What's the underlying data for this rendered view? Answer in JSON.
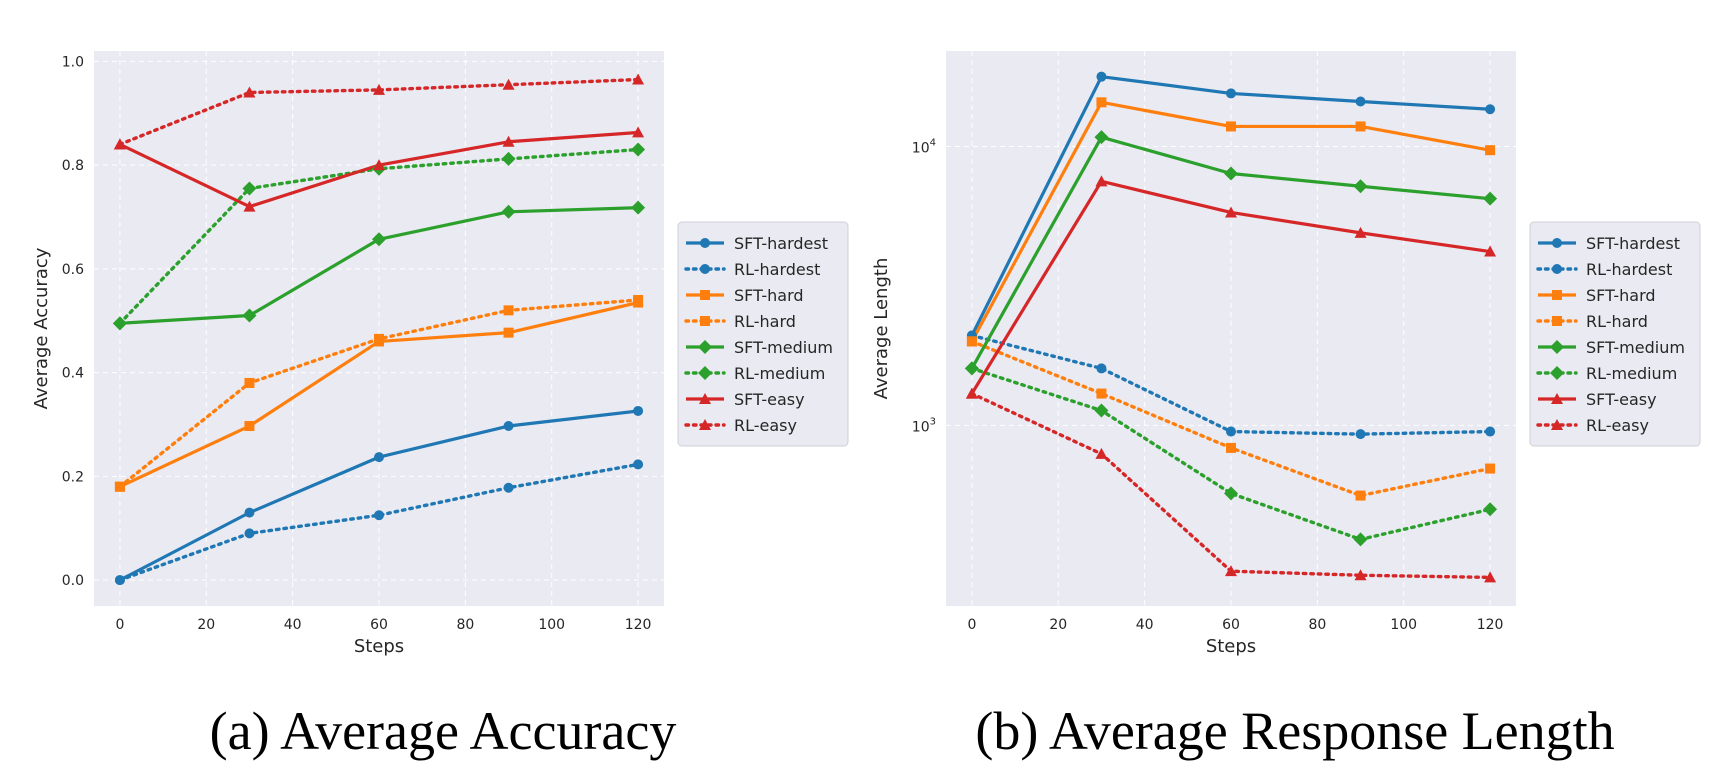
{
  "chart_data": [
    {
      "type": "line",
      "caption": "(a) Average Accuracy",
      "xlabel": "Steps",
      "ylabel": "Average Accuracy",
      "x": [
        0,
        30,
        60,
        90,
        120
      ],
      "xlim": [
        -6,
        126
      ],
      "ylim": [
        -0.05,
        1.02
      ],
      "xticks": [
        "0",
        "20",
        "40",
        "60",
        "80",
        "100",
        "120"
      ],
      "yticks": [
        "0.0",
        "0.2",
        "0.4",
        "0.6",
        "0.8",
        "1.0"
      ],
      "yscale": "linear",
      "grid": true,
      "legend_position": "right",
      "series": [
        {
          "name": "SFT-hardest",
          "color": "#1f77b4",
          "style": "solid",
          "marker": "circle",
          "values": [
            0.0,
            0.13,
            0.237,
            0.297,
            0.326
          ]
        },
        {
          "name": "RL-hardest",
          "color": "#1f77b4",
          "style": "dotted",
          "marker": "circle",
          "values": [
            0.0,
            0.09,
            0.125,
            0.178,
            0.223
          ]
        },
        {
          "name": "SFT-hard",
          "color": "#ff7f0e",
          "style": "solid",
          "marker": "square",
          "values": [
            0.18,
            0.297,
            0.46,
            0.477,
            0.535
          ]
        },
        {
          "name": "RL-hard",
          "color": "#ff7f0e",
          "style": "dotted",
          "marker": "square",
          "values": [
            0.18,
            0.38,
            0.465,
            0.52,
            0.54
          ]
        },
        {
          "name": "SFT-medium",
          "color": "#2ca02c",
          "style": "solid",
          "marker": "diamond",
          "values": [
            0.495,
            0.51,
            0.657,
            0.71,
            0.718
          ]
        },
        {
          "name": "RL-medium",
          "color": "#2ca02c",
          "style": "dotted",
          "marker": "diamond",
          "values": [
            0.495,
            0.755,
            0.793,
            0.812,
            0.83
          ]
        },
        {
          "name": "SFT-easy",
          "color": "#d62728",
          "style": "solid",
          "marker": "triangle",
          "values": [
            0.84,
            0.72,
            0.8,
            0.845,
            0.863
          ]
        },
        {
          "name": "RL-easy",
          "color": "#d62728",
          "style": "dotted",
          "marker": "triangle",
          "values": [
            0.84,
            0.94,
            0.945,
            0.955,
            0.965
          ]
        }
      ]
    },
    {
      "type": "line",
      "caption": "(b) Average Response Length",
      "xlabel": "Steps",
      "ylabel": "Average Length",
      "x": [
        0,
        30,
        60,
        90,
        120
      ],
      "xlim": [
        -6,
        126
      ],
      "ylim": [
        225,
        22000
      ],
      "xticks": [
        "0",
        "20",
        "40",
        "60",
        "80",
        "100",
        "120"
      ],
      "yticks": [
        {
          "value": 1000,
          "base": "10",
          "exp": "3"
        },
        {
          "value": 10000,
          "base": "10",
          "exp": "4"
        }
      ],
      "yscale": "log",
      "grid": true,
      "legend_position": "right",
      "series": [
        {
          "name": "SFT-hardest",
          "color": "#1f77b4",
          "style": "solid",
          "marker": "circle",
          "values": [
            2100,
            17800,
            15500,
            14500,
            13600
          ]
        },
        {
          "name": "RL-hardest",
          "color": "#1f77b4",
          "style": "dotted",
          "marker": "circle",
          "values": [
            2100,
            1600,
            950,
            930,
            950
          ]
        },
        {
          "name": "SFT-hard",
          "color": "#ff7f0e",
          "style": "solid",
          "marker": "square",
          "values": [
            2000,
            14400,
            11800,
            11800,
            9700
          ]
        },
        {
          "name": "RL-hard",
          "color": "#ff7f0e",
          "style": "dotted",
          "marker": "square",
          "values": [
            2000,
            1300,
            830,
            560,
            700
          ]
        },
        {
          "name": "SFT-medium",
          "color": "#2ca02c",
          "style": "solid",
          "marker": "diamond",
          "values": [
            1600,
            10800,
            8000,
            7200,
            6500
          ]
        },
        {
          "name": "RL-medium",
          "color": "#2ca02c",
          "style": "dotted",
          "marker": "diamond",
          "values": [
            1600,
            1130,
            570,
            390,
            500
          ]
        },
        {
          "name": "SFT-easy",
          "color": "#d62728",
          "style": "solid",
          "marker": "triangle",
          "values": [
            1300,
            7500,
            5800,
            4900,
            4200
          ]
        },
        {
          "name": "RL-easy",
          "color": "#d62728",
          "style": "dotted",
          "marker": "triangle",
          "values": [
            1300,
            790,
            300,
            290,
            285
          ]
        }
      ]
    }
  ]
}
